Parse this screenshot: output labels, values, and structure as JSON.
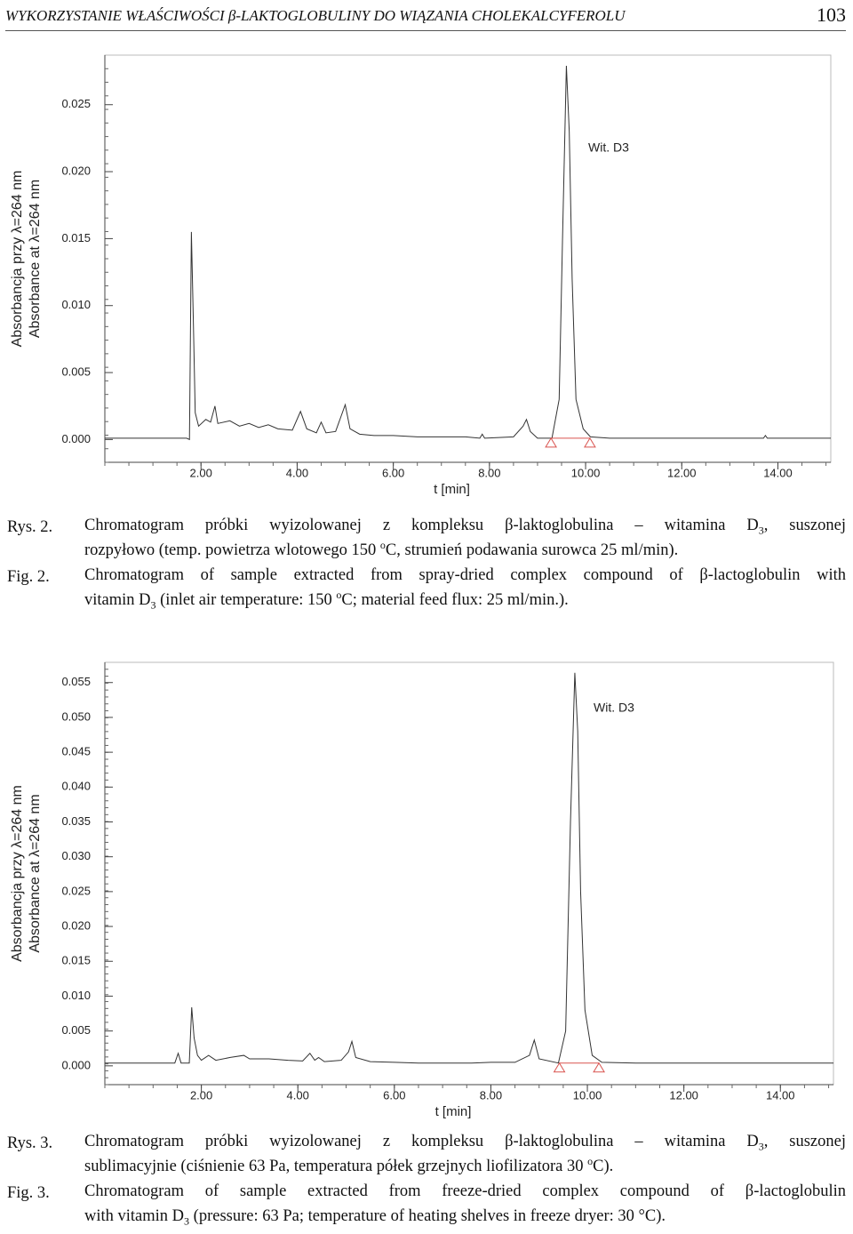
{
  "header": {
    "title": "WYKORZYSTANIE WŁAŚCIWOŚCI β-LAKTOGLOBULINY DO WIĄZANIA CHOLEKALCYFEROLU",
    "page": "103"
  },
  "chart_data": [
    {
      "type": "line",
      "color": "#333333",
      "y_label": [
        "Absorbancja przy λ=264 nm",
        "Absorbance at λ=264 nm"
      ],
      "x_label": "t [min]",
      "annotation": "Wit. D3",
      "x": [
        0,
        1.7,
        1.76,
        1.8,
        1.84,
        1.88,
        1.95,
        2.1,
        2.2,
        2.29,
        2.35,
        2.6,
        2.8,
        3.0,
        3.2,
        3.4,
        3.6,
        3.9,
        4.07,
        4.2,
        4.4,
        4.5,
        4.6,
        4.8,
        5.0,
        5.1,
        5.3,
        5.6,
        6.0,
        6.5,
        7.0,
        7.5,
        7.8,
        7.85,
        7.9,
        8.5,
        8.7,
        8.77,
        8.85,
        9.0,
        9.3,
        9.45,
        9.52,
        9.6,
        9.66,
        9.72,
        9.8,
        9.95,
        10.1,
        10.5,
        13.7,
        13.74,
        13.78,
        15.1
      ],
      "values": [
        0.0001,
        0.0001,
        0.0,
        0.0155,
        0.009,
        0.002,
        0.001,
        0.0015,
        0.0013,
        0.0025,
        0.0012,
        0.0014,
        0.001,
        0.0012,
        0.0009,
        0.0011,
        0.0008,
        0.0007,
        0.0021,
        0.0008,
        0.0005,
        0.0013,
        0.0005,
        0.0006,
        0.0026,
        0.0008,
        0.0004,
        0.0003,
        0.0003,
        0.0002,
        0.0002,
        0.0002,
        0.0001,
        0.0004,
        0.0001,
        0.0002,
        0.001,
        0.0015,
        0.0006,
        0.0001,
        0.0001,
        0.003,
        0.015,
        0.0279,
        0.023,
        0.012,
        0.003,
        0.0008,
        0.0002,
        0.0001,
        0.0001,
        0.0003,
        0.0001,
        0.0001
      ],
      "markers": {
        "color": "#d9534f",
        "x": [
          9.28,
          10.09
        ],
        "values": [
          0.0001,
          0.0001
        ]
      },
      "xlim": [
        0,
        15.1
      ],
      "ylim": [
        -0.0017,
        0.0287
      ],
      "xticks": [
        {
          "value": 2,
          "label": "2.00"
        },
        {
          "value": 4,
          "label": "4.00"
        },
        {
          "value": 6,
          "label": "6.00"
        },
        {
          "value": 8,
          "label": "8.00"
        },
        {
          "value": 10,
          "label": "10.00"
        },
        {
          "value": 12,
          "label": "12.00"
        },
        {
          "value": 14,
          "label": "14.00"
        }
      ],
      "yticks": [
        {
          "value": 0,
          "label": "0.000"
        },
        {
          "value": 0.005,
          "label": "0.005"
        },
        {
          "value": 0.01,
          "label": "0.010"
        },
        {
          "value": 0.015,
          "label": "0.015"
        },
        {
          "value": 0.02,
          "label": "0.020"
        },
        {
          "value": 0.025,
          "label": "0.025"
        }
      ]
    },
    {
      "type": "line",
      "color": "#333333",
      "y_label": [
        "Absorbancja przy λ=264 nm",
        "Absorbance at λ=264 nm"
      ],
      "x_label": "t [min]",
      "annotation": "Wit. D3",
      "x": [
        0,
        1.45,
        1.52,
        1.58,
        1.75,
        1.8,
        1.85,
        1.92,
        2.0,
        2.15,
        2.3,
        2.6,
        2.88,
        3.0,
        3.4,
        3.8,
        4.1,
        4.25,
        4.35,
        4.43,
        4.55,
        4.9,
        5.05,
        5.12,
        5.2,
        5.5,
        6.0,
        6.5,
        7.0,
        7.6,
        8.0,
        8.5,
        8.8,
        8.9,
        9.0,
        9.4,
        9.55,
        9.65,
        9.74,
        9.8,
        9.86,
        9.95,
        10.1,
        10.3,
        11,
        15.1
      ],
      "values": [
        0.0004,
        0.0004,
        0.0018,
        0.0004,
        0.0004,
        0.0084,
        0.004,
        0.0015,
        0.0008,
        0.0015,
        0.0008,
        0.0012,
        0.0015,
        0.001,
        0.001,
        0.0008,
        0.0007,
        0.0018,
        0.0008,
        0.0012,
        0.0006,
        0.0008,
        0.002,
        0.0035,
        0.0012,
        0.0006,
        0.0005,
        0.0004,
        0.0004,
        0.0004,
        0.0005,
        0.0005,
        0.0015,
        0.0037,
        0.001,
        0.0004,
        0.005,
        0.035,
        0.0564,
        0.048,
        0.025,
        0.008,
        0.0015,
        0.0005,
        0.0004,
        0.0004
      ],
      "markers": {
        "color": "#d9534f",
        "x": [
          9.42,
          10.24
        ],
        "values": [
          0.0004,
          0.0004
        ]
      },
      "xlim": [
        0,
        15.1
      ],
      "ylim": [
        -0.0027,
        0.0579
      ],
      "xticks": [
        {
          "value": 2,
          "label": "2.00"
        },
        {
          "value": 4,
          "label": "4.00"
        },
        {
          "value": 6,
          "label": "6.00"
        },
        {
          "value": 8,
          "label": "8.00"
        },
        {
          "value": 10,
          "label": "10.00"
        },
        {
          "value": 12,
          "label": "12.00"
        },
        {
          "value": 14,
          "label": "14.00"
        }
      ],
      "yticks": [
        {
          "value": 0,
          "label": "0.000"
        },
        {
          "value": 0.005,
          "label": "0.005"
        },
        {
          "value": 0.01,
          "label": "0.010"
        },
        {
          "value": 0.015,
          "label": "0.015"
        },
        {
          "value": 0.02,
          "label": "0.020"
        },
        {
          "value": 0.025,
          "label": "0.025"
        },
        {
          "value": 0.03,
          "label": "0.030"
        },
        {
          "value": 0.035,
          "label": "0.035"
        },
        {
          "value": 0.04,
          "label": "0.040"
        },
        {
          "value": 0.045,
          "label": "0.045"
        },
        {
          "value": 0.05,
          "label": "0.050"
        },
        {
          "value": 0.055,
          "label": "0.055"
        }
      ]
    }
  ],
  "captions": [
    {
      "label_pl": "Rys. 2.",
      "label_en": "Fig. 2.",
      "lines": [
        [
          "Chromatogram próbki wyizolowanej z kompleksu β-laktoglobulina – witamina D",
          {
            "sub": "3"
          },
          ", suszonej"
        ],
        [
          "rozpyłowo (temp. powietrza wlotowego 150 ",
          {
            "sup": "o"
          },
          "C, strumień podawania surowca 25 ml/min)."
        ],
        [
          "Chromatogram of sample extracted from spray-dried complex compound of β-lactoglobulin with"
        ],
        [
          "vitamin D",
          {
            "sub": "3"
          },
          " (inlet air temperature: 150 ",
          {
            "sup": "o"
          },
          "C; material feed flux: 25 ml/min.)."
        ]
      ]
    },
    {
      "label_pl": "Rys. 3.",
      "label_en": "Fig. 3.",
      "lines": [
        [
          "Chromatogram próbki wyizolowanej z kompleksu β-laktoglobulina – witamina D",
          {
            "sub": "3"
          },
          ", suszonej"
        ],
        [
          "sublimacyjnie (ciśnienie 63 Pa, temperatura półek grzejnych liofilizatora 30 ",
          {
            "sup": "o"
          },
          "C)."
        ],
        [
          "Chromatogram of sample extracted from freeze-dried complex compound of β-lactoglobulin"
        ],
        [
          "with vitamin D",
          {
            "sub": "3"
          },
          " (pressure: 63 Pa; temperature of heating shelves in freeze dryer: 30 °C)."
        ]
      ]
    }
  ]
}
